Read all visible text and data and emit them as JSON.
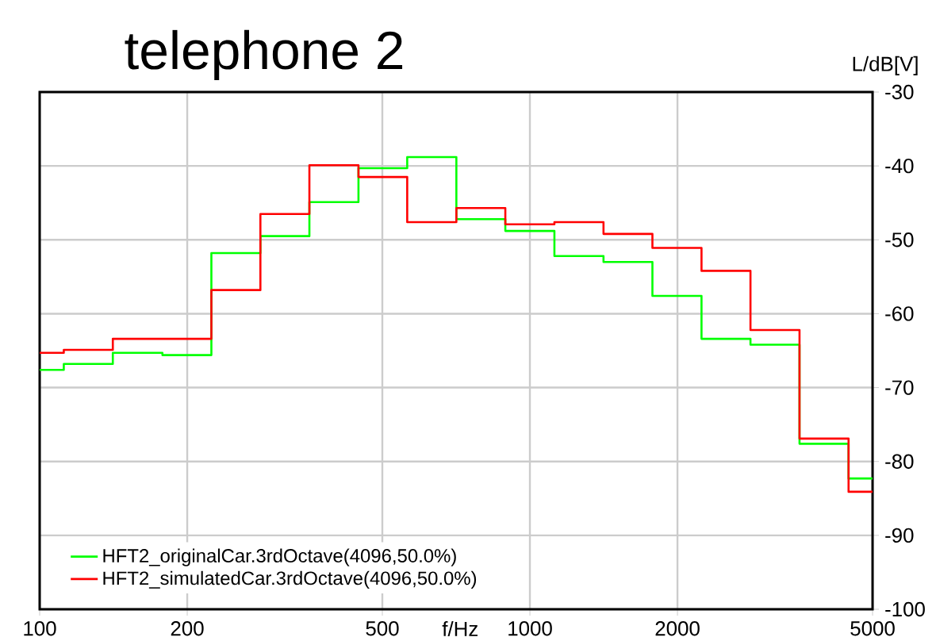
{
  "chart_data": {
    "type": "step",
    "title": "telephone 2",
    "xlabel": "f/Hz",
    "ylabel": "L/dB[V]",
    "x": [
      100,
      112,
      141,
      178,
      224,
      282,
      355,
      447,
      562,
      708,
      891,
      1122,
      1413,
      1778,
      2239,
      2818,
      3548,
      4467,
      5000
    ],
    "series": [
      {
        "name": "HFT2_originalCar.3rdOctave(4096,50.0%)",
        "color": "#00ff00",
        "values": [
          -67.6,
          -66.8,
          -65.3,
          -65.6,
          -51.8,
          -49.5,
          -44.9,
          -40.3,
          -38.8,
          -47.2,
          -48.8,
          -52.2,
          -53.0,
          -57.6,
          -63.4,
          -64.2,
          -77.6,
          -82.3,
          -82.3
        ]
      },
      {
        "name": "HFT2_simulatedCar.3rdOctave(4096,50.0%)",
        "color": "#ff0000",
        "values": [
          -65.3,
          -64.9,
          -63.4,
          -63.4,
          -56.8,
          -46.5,
          -39.9,
          -41.5,
          -47.6,
          -45.7,
          -47.9,
          -47.6,
          -49.2,
          -51.1,
          -54.2,
          -62.2,
          -76.9,
          -84.1,
          -84.1
        ]
      }
    ],
    "log": "x",
    "xlim": [
      100,
      5000
    ],
    "xticks": [
      100,
      200,
      500,
      1000,
      2000,
      5000
    ],
    "ylim": [
      -100,
      -30
    ],
    "yticks": [
      -100,
      -90,
      -80,
      -70,
      -60,
      -50,
      -40,
      -30
    ],
    "grid": true,
    "legend": "bottom left",
    "line_style": "solid",
    "marker": "none"
  }
}
